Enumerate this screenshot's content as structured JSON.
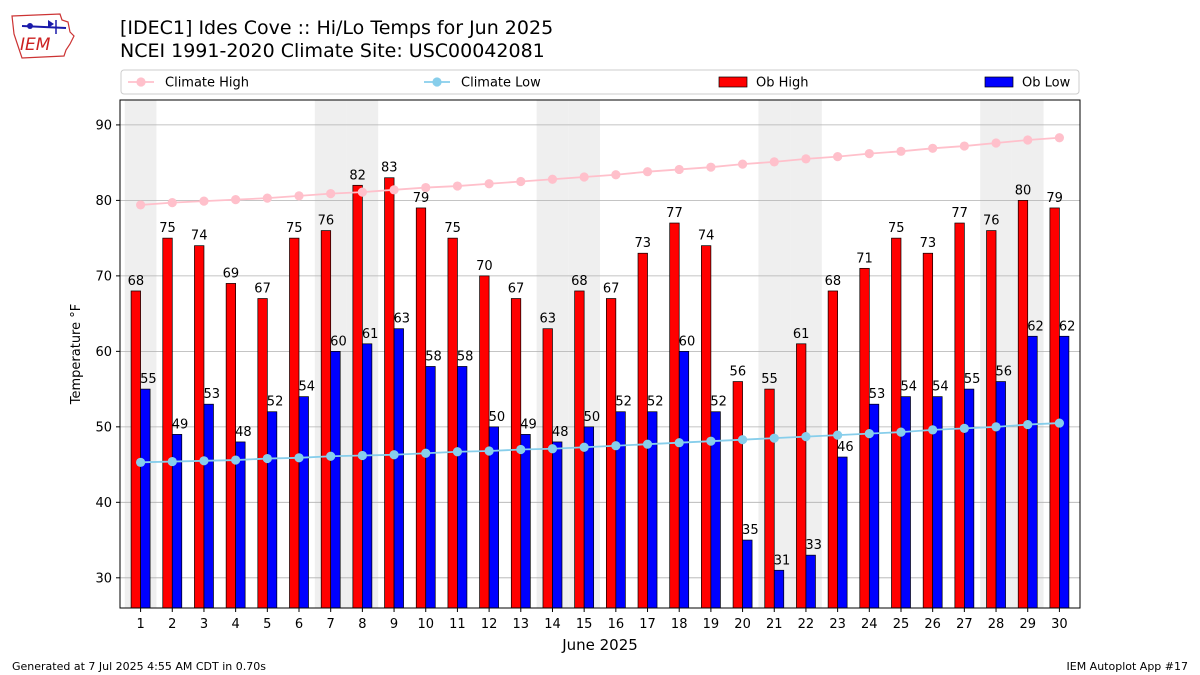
{
  "header": {
    "logo_text": "IEM",
    "title_line1": "[IDEC1] Ides Cove :: Hi/Lo Temps for Jun 2025",
    "title_line2": "NCEI 1991-2020 Climate Site: USC00042081"
  },
  "footer": {
    "left": "Generated at 7 Jul 2025 4:55 AM CDT in 0.70s",
    "right": "IEM Autoplot App #17"
  },
  "colors": {
    "ob_high": "#ff0000",
    "ob_low": "#0000ff",
    "climate_high": "#ffc0cb",
    "climate_low": "#87ceeb",
    "weekend_band": "#efefef",
    "grid": "#b0b0b0"
  },
  "chart_data": {
    "type": "bar",
    "xlabel": "June 2025",
    "ylabel": "Temperature °F",
    "ylim": [
      26,
      93.3
    ],
    "yticks": [
      30,
      40,
      50,
      60,
      70,
      80,
      90
    ],
    "grid": "horizontal",
    "legend_position": "top",
    "legend": [
      "Climate High",
      "Climate Low",
      "Ob High",
      "Ob Low"
    ],
    "categories": [
      "1",
      "2",
      "3",
      "4",
      "5",
      "6",
      "7",
      "8",
      "9",
      "10",
      "11",
      "12",
      "13",
      "14",
      "15",
      "16",
      "17",
      "18",
      "19",
      "20",
      "21",
      "22",
      "23",
      "24",
      "25",
      "26",
      "27",
      "28",
      "29",
      "30"
    ],
    "weekend_days": [
      1,
      7,
      8,
      14,
      15,
      21,
      22,
      28,
      29
    ],
    "series": [
      {
        "name": "Ob High",
        "kind": "bar",
        "color": "#ff0000",
        "values": [
          68,
          75,
          74,
          69,
          67,
          75,
          76,
          82,
          83,
          79,
          75,
          70,
          67,
          63,
          68,
          67,
          73,
          77,
          74,
          56,
          55,
          61,
          68,
          71,
          75,
          73,
          77,
          76,
          80,
          79
        ]
      },
      {
        "name": "Ob Low",
        "kind": "bar",
        "color": "#0000ff",
        "values": [
          55,
          49,
          53,
          48,
          52,
          54,
          60,
          61,
          63,
          58,
          58,
          50,
          49,
          48,
          50,
          52,
          52,
          60,
          52,
          35,
          31,
          33,
          46,
          53,
          54,
          54,
          55,
          56,
          62,
          62
        ]
      },
      {
        "name": "Climate High",
        "kind": "line",
        "color": "#ffc0cb",
        "values": [
          79.4,
          79.7,
          79.9,
          80.1,
          80.3,
          80.6,
          80.9,
          81.1,
          81.4,
          81.7,
          81.9,
          82.2,
          82.5,
          82.8,
          83.1,
          83.4,
          83.8,
          84.1,
          84.4,
          84.8,
          85.1,
          85.5,
          85.8,
          86.2,
          86.5,
          86.9,
          87.2,
          87.6,
          88.0,
          88.3
        ]
      },
      {
        "name": "Climate Low",
        "kind": "line",
        "color": "#87ceeb",
        "values": [
          45.3,
          45.4,
          45.5,
          45.6,
          45.8,
          45.9,
          46.1,
          46.2,
          46.3,
          46.5,
          46.7,
          46.8,
          47.0,
          47.1,
          47.3,
          47.5,
          47.7,
          47.9,
          48.1,
          48.3,
          48.5,
          48.7,
          48.9,
          49.1,
          49.3,
          49.6,
          49.8,
          50.0,
          50.3,
          50.5
        ]
      }
    ]
  }
}
